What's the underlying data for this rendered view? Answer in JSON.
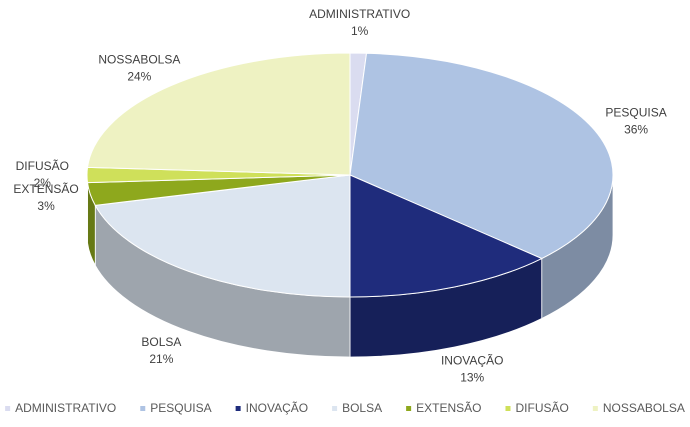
{
  "chart_data": {
    "type": "pie3d",
    "categories": [
      "ADMINISTRATIVO",
      "PESQUISA",
      "INOVAÇÃO",
      "BOLSA",
      "EXTENSÃO",
      "DIFUSÃO",
      "NOSSABOLSA"
    ],
    "values": [
      1,
      36,
      13,
      21,
      3,
      2,
      24
    ],
    "value_labels": [
      "1%",
      "36%",
      "13%",
      "21%",
      "3%",
      "2%",
      "24%"
    ],
    "colors": [
      "#dadcf0",
      "#aec3e3",
      "#1f2c7c",
      "#dce5f0",
      "#8ea81d",
      "#cfe05a",
      "#eef2c2"
    ],
    "legend": "bottom"
  }
}
